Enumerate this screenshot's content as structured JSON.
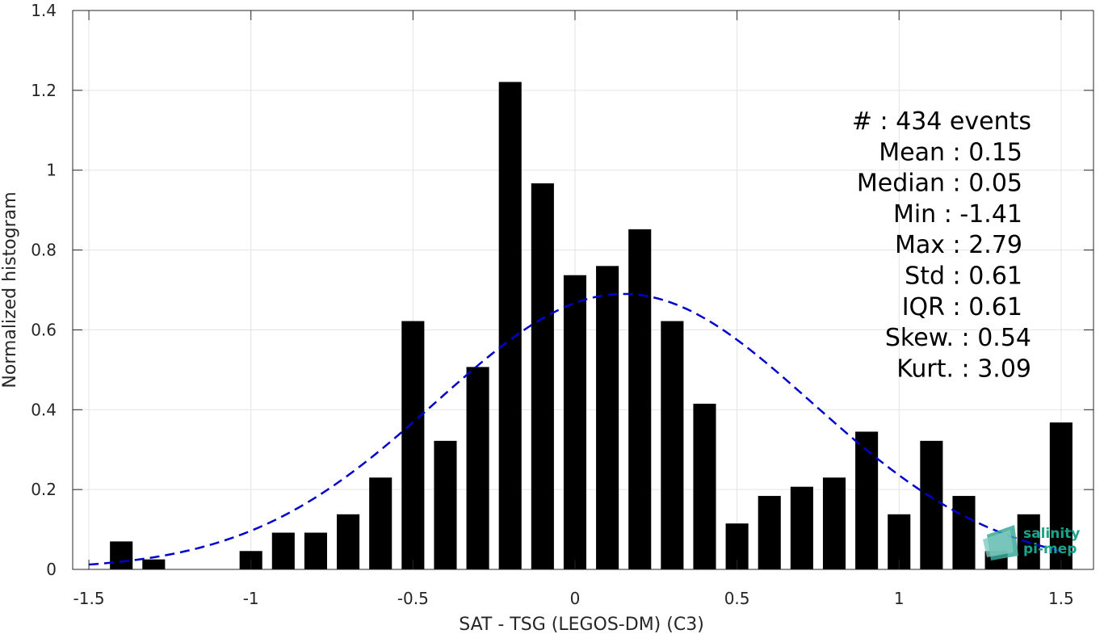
{
  "chart_data": {
    "type": "bar",
    "xlabel": "SAT - TSG (LEGOS-DM) (C3)",
    "ylabel": "Normalized histogram",
    "xlim": [
      -1.55,
      1.6
    ],
    "ylim": [
      0,
      1.4
    ],
    "xticks": [
      -1.5,
      -1,
      -0.5,
      0,
      0.5,
      1,
      1.5
    ],
    "xtick_labels": [
      "-1.5",
      "-1",
      "-0.5",
      "0",
      "0.5",
      "1",
      "1.5"
    ],
    "yticks": [
      0,
      0.2,
      0.4,
      0.6,
      0.8,
      1,
      1.2,
      1.4
    ],
    "ytick_labels": [
      "0",
      "0.2",
      "0.4",
      "0.6",
      "0.8",
      "1",
      "1.2",
      "1.4"
    ],
    "grid": true,
    "bin_width": 0.1,
    "bar_width": 0.07,
    "bar_color": "#000000",
    "bins": [
      -1.4,
      -1.3,
      -1.0,
      -0.9,
      -0.8,
      -0.7,
      -0.6,
      -0.5,
      -0.4,
      -0.3,
      -0.2,
      -0.1,
      0.0,
      0.1,
      0.2,
      0.3,
      0.4,
      0.5,
      0.6,
      0.7,
      0.8,
      0.9,
      1.0,
      1.1,
      1.2,
      1.3,
      1.4,
      1.5
    ],
    "values": [
      0.07,
      0.025,
      0.046,
      0.092,
      0.092,
      0.138,
      0.23,
      0.622,
      0.322,
      0.507,
      1.221,
      0.967,
      0.737,
      0.76,
      0.852,
      0.622,
      0.415,
      0.115,
      0.184,
      0.207,
      0.23,
      0.345,
      0.138,
      0.322,
      0.184,
      0.046,
      0.138,
      0.368
    ],
    "fit": {
      "type": "normal",
      "mean": 0.15,
      "std": 0.58,
      "peak": 0.69,
      "x_start": -1.5,
      "x_end": 1.5,
      "color": "#0000cc",
      "style": "dashed"
    },
    "stats": [
      {
        "text": "#  : 434 events",
        "anchor": "events"
      },
      {
        "text": "Mean : 0.15",
        "anchor": "colon"
      },
      {
        "text": "Median : 0.05",
        "anchor": "colon"
      },
      {
        "text": "Min : -1.41",
        "anchor": "colon"
      },
      {
        "text": "Max : 2.79",
        "anchor": "colon"
      },
      {
        "text": "Std : 0.61",
        "anchor": "colon"
      },
      {
        "text": "IQR : 0.61",
        "anchor": "colon"
      },
      {
        "text": "Skew. : 0.54",
        "anchor": "events"
      },
      {
        "text": "Kurt. : 3.09",
        "anchor": "events"
      }
    ]
  },
  "logo": {
    "line1": "salinity",
    "line2": "pi-mep",
    "color": "#1aa38a"
  }
}
